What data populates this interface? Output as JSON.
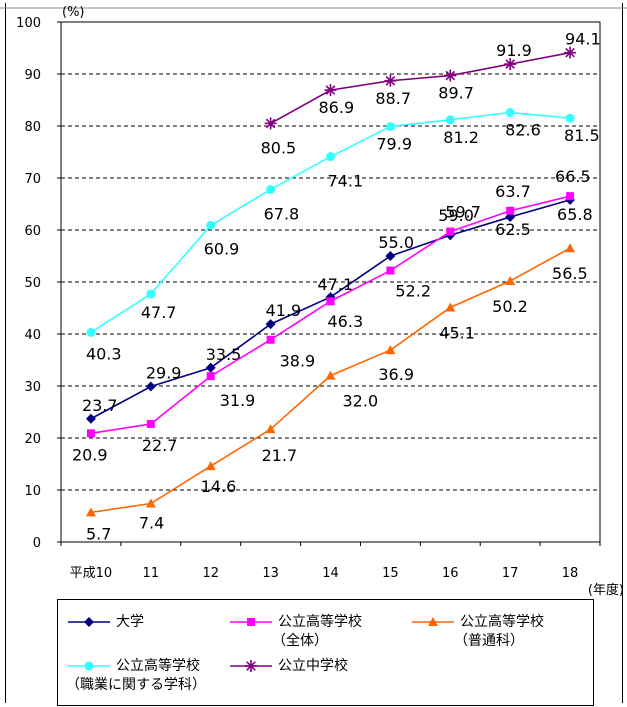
{
  "chart_data": {
    "type": "line",
    "y_unit": "(%)",
    "x_unit": "(年度)",
    "categories": [
      "平成10",
      "11",
      "12",
      "13",
      "14",
      "15",
      "16",
      "17",
      "18"
    ],
    "ylim": [
      0,
      100
    ],
    "yticks": [
      0,
      10,
      20,
      30,
      40,
      50,
      60,
      70,
      80,
      90,
      100
    ],
    "grid": true,
    "legend_position": "bottom",
    "series": [
      {
        "name": "大学",
        "color": "#000080",
        "marker": "diamond",
        "values": [
          23.7,
          29.9,
          33.5,
          41.9,
          47.1,
          55.0,
          59.0,
          62.5,
          65.8
        ],
        "labels": [
          "23.7",
          "29.9",
          "33.5",
          "41.9",
          "47.1",
          "55.0",
          "59.0",
          "62.5",
          "65.8"
        ]
      },
      {
        "name": "公立高等学校",
        "sub": "（全体）",
        "color": "#ff00ff",
        "marker": "square",
        "values": [
          20.9,
          22.7,
          31.9,
          38.9,
          46.3,
          52.2,
          59.7,
          63.7,
          66.5
        ],
        "labels": [
          "20.9",
          "22.7",
          "31.9",
          "38.9",
          "46.3",
          "52.2",
          "59.7",
          "63.7",
          "66.5"
        ]
      },
      {
        "name": "公立高等学校",
        "sub": "（普通科）",
        "color": "#ff6600",
        "marker": "triangle",
        "values": [
          5.7,
          7.4,
          14.6,
          21.7,
          32.0,
          36.9,
          45.1,
          50.2,
          56.5
        ],
        "labels": [
          "5.7",
          "7.4",
          "14.6",
          "21.7",
          "32.0",
          "36.9",
          "45.1",
          "50.2",
          "56.5"
        ]
      },
      {
        "name": "公立高等学校",
        "sub": "（職業に関する学科）",
        "color": "#33ffff",
        "marker": "circle",
        "values": [
          40.3,
          47.7,
          60.9,
          67.8,
          74.1,
          79.9,
          81.2,
          82.6,
          81.5
        ],
        "labels": [
          "40.3",
          "47.7",
          "60.9",
          "67.8",
          "74.1",
          "79.9",
          "81.2",
          "82.6",
          "81.5"
        ]
      },
      {
        "name": "公立中学校",
        "color": "#800080",
        "marker": "star",
        "values": [
          null,
          null,
          null,
          80.5,
          86.9,
          88.7,
          89.7,
          91.9,
          94.1
        ],
        "labels": [
          null,
          null,
          null,
          "80.5",
          "86.9",
          "88.7",
          "89.7",
          "91.9",
          "94.1"
        ]
      }
    ]
  }
}
